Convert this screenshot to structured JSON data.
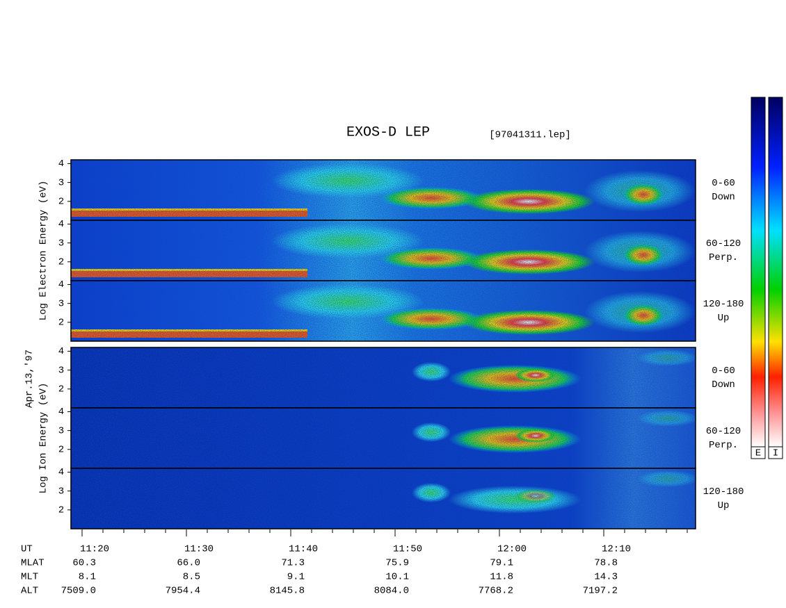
{
  "header": {
    "title": "EXOS-D LEP",
    "file": "[97041311.lep]"
  },
  "date": "Apr.13,'97",
  "ylim": [
    1,
    4.2
  ],
  "yticks": [
    2,
    3,
    4
  ],
  "groups": [
    {
      "label": "Log Electron Energy (eV)",
      "panels": [
        {
          "angle": "0-60",
          "direction": "Down"
        },
        {
          "angle": "60-120",
          "direction": "Perp."
        },
        {
          "angle": "120-180",
          "direction": "Up"
        }
      ]
    },
    {
      "label": "Log Ion Energy (eV)",
      "panels": [
        {
          "angle": "0-60",
          "direction": "Down"
        },
        {
          "angle": "60-120",
          "direction": "Perp."
        },
        {
          "angle": "120-180",
          "direction": "Up"
        }
      ]
    }
  ],
  "colorbars": [
    "E",
    "I"
  ],
  "ephemeris": {
    "rows": [
      "UT",
      "MLAT",
      "MLT",
      "ALT"
    ],
    "columns": [
      [
        "11:20",
        "60.3",
        "8.1",
        "7509.0"
      ],
      [
        "11:30",
        "66.0",
        "8.5",
        "7954.4"
      ],
      [
        "11:40",
        "71.3",
        "9.1",
        "8145.8"
      ],
      [
        "11:50",
        "75.9",
        "10.1",
        "8084.0"
      ],
      [
        "12:00",
        "79.1",
        "11.8",
        "7768.2"
      ],
      [
        "12:10",
        "78.8",
        "14.3",
        "7197.2"
      ]
    ]
  }
}
